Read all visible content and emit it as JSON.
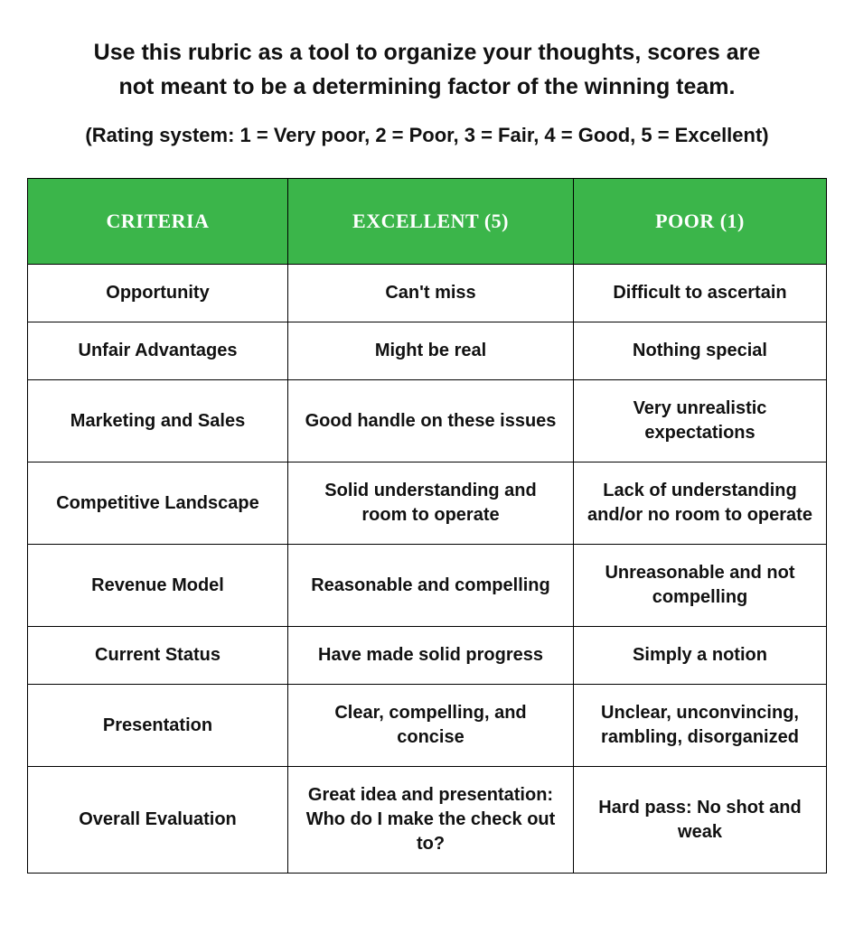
{
  "intro_line1": "Use this rubric as a tool to organize your thoughts, scores are",
  "intro_line2": "not meant to be a determining factor of the winning team.",
  "rating_system": "(Rating system: 1 = Very poor, 2 = Poor, 3 = Fair, 4 = Good, 5 = Excellent)",
  "table": {
    "header_bg": "#3BB54A",
    "header_text_color": "#ffffff",
    "border_color": "#000000",
    "columns": {
      "criteria": "CRITERIA",
      "excellent": "EXCELLENT (5)",
      "poor": "POOR (1)"
    },
    "rows": [
      {
        "criteria": "Opportunity",
        "excellent": "Can't miss",
        "poor": "Difficult to ascertain"
      },
      {
        "criteria": "Unfair Advantages",
        "excellent": "Might be real",
        "poor": "Nothing special"
      },
      {
        "criteria": "Marketing and Sales",
        "excellent": "Good handle on these issues",
        "poor": "Very unrealistic expectations"
      },
      {
        "criteria": "Competitive Landscape",
        "excellent": "Solid understanding and room to operate",
        "poor": "Lack of understanding and/or no room to operate"
      },
      {
        "criteria": "Revenue Model",
        "excellent": "Reasonable and compelling",
        "poor": "Unreasonable and not compelling"
      },
      {
        "criteria": "Current Status",
        "excellent": "Have made solid progress",
        "poor": "Simply a notion"
      },
      {
        "criteria": "Presentation",
        "excellent": "Clear, compelling, and concise",
        "poor": "Unclear, unconvincing, rambling, disorganized"
      },
      {
        "criteria": "Overall Evaluation",
        "excellent": "Great idea and presentation: Who do I make the check out to?",
        "poor": "Hard pass: No shot and weak"
      }
    ]
  }
}
